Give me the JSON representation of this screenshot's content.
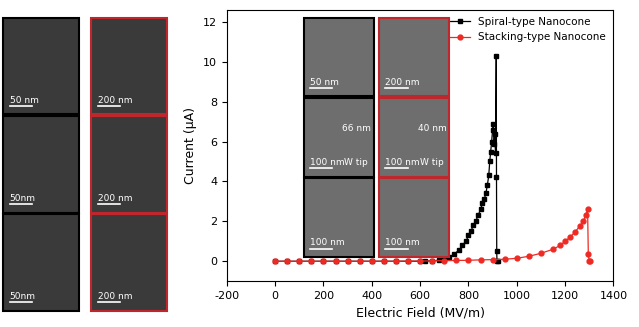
{
  "chart_data": {
    "type": "line",
    "x_label": "Electric Field (MV/m)",
    "y_label": "Current (μA)",
    "xlim": [
      -200,
      1400
    ],
    "xticks": [
      -200,
      0,
      200,
      400,
      600,
      800,
      1000,
      1200,
      1400
    ],
    "ylim": [
      -1,
      12.6
    ],
    "yticks": [
      0,
      2,
      4,
      6,
      8,
      10,
      12
    ],
    "legend": "upper right",
    "grid": false,
    "series": [
      {
        "name": "Spiral-type Nanocone",
        "color": "#000000",
        "marker": "square",
        "line_style": "solid",
        "x": [
          0,
          50,
          100,
          150,
          200,
          250,
          300,
          350,
          400,
          450,
          500,
          550,
          600,
          620,
          650,
          680,
          700,
          720,
          740,
          760,
          775,
          790,
          800,
          810,
          820,
          830,
          840,
          850,
          858,
          865,
          872,
          878,
          884,
          888,
          892,
          896,
          900,
          903,
          906,
          909,
          912,
          915,
          916,
          917,
          918,
          922
        ],
        "values": [
          0,
          0,
          0,
          0,
          0,
          0,
          0,
          0,
          0,
          0,
          0,
          0,
          0,
          0.01,
          0.02,
          0.05,
          0.1,
          0.2,
          0.35,
          0.55,
          0.8,
          1.0,
          1.3,
          1.5,
          1.8,
          2.0,
          2.3,
          2.6,
          2.9,
          3.1,
          3.4,
          3.8,
          4.3,
          5.0,
          5.5,
          6.0,
          6.6,
          6.9,
          5.9,
          6.4,
          5.4,
          10.3,
          4.2,
          0.5,
          0.0,
          0.0
        ]
      },
      {
        "name": "Stacking-type Nanocone",
        "color": "#ee2a24",
        "marker": "circle",
        "line_style": "solid",
        "x": [
          0,
          50,
          100,
          150,
          200,
          250,
          300,
          350,
          400,
          450,
          500,
          550,
          600,
          650,
          700,
          750,
          800,
          850,
          900,
          950,
          1000,
          1050,
          1100,
          1150,
          1180,
          1200,
          1220,
          1240,
          1260,
          1275,
          1285,
          1293,
          1296,
          1300,
          1305
        ],
        "values": [
          0,
          0,
          0,
          0,
          0,
          0,
          0,
          0,
          0,
          0,
          0,
          0.01,
          0.01,
          0.02,
          0.03,
          0.04,
          0.05,
          0.07,
          0.08,
          0.1,
          0.15,
          0.25,
          0.4,
          0.6,
          0.8,
          1.0,
          1.2,
          1.45,
          1.75,
          2.0,
          2.3,
          2.6,
          0.35,
          0.0,
          0.0
        ]
      }
    ]
  },
  "image_panels": {
    "left": [
      [
        {
          "texts": [
            "50 nm"
          ]
        },
        {
          "texts": [
            "50nm"
          ]
        },
        {
          "texts": [
            "50nm"
          ]
        }
      ],
      [
        {
          "texts": [
            "200 nm"
          ]
        },
        {
          "texts": [
            "200 nm"
          ]
        },
        {
          "texts": [
            "200 nm"
          ]
        }
      ]
    ],
    "inset": [
      [
        {
          "texts": [
            "50 nm"
          ]
        },
        {
          "texts": [
            "100 nm",
            "66 nm",
            "W tip"
          ]
        },
        {
          "texts": [
            "100 nm"
          ]
        }
      ],
      [
        {
          "texts": [
            "200 nm"
          ]
        },
        {
          "texts": [
            "100 nm",
            "40 nm",
            "W tip"
          ]
        },
        {
          "texts": [
            "100 nm"
          ]
        }
      ]
    ]
  }
}
